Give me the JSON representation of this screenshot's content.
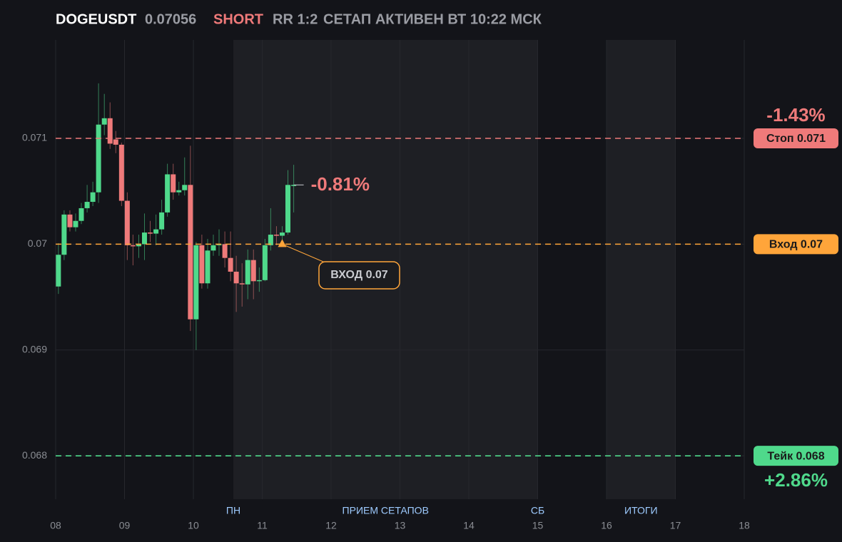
{
  "chart_data": {
    "type": "candlestick",
    "header": {
      "symbol": "DOGEUSDT",
      "price": 0.07056,
      "side": "SHORT",
      "rr": "RR 1:2",
      "status": "СЕТАП АКТИВЕН ВТ 10:22 МСК"
    },
    "xlim": [
      8,
      18
    ],
    "ylim": [
      0.06759,
      0.07193
    ],
    "xticks": [
      {
        "value": 8,
        "label": "08"
      },
      {
        "value": 9,
        "label": "09"
      },
      10,
      11,
      12,
      13,
      14,
      15,
      16,
      17,
      18
    ],
    "yticks": [
      0.068,
      0.069,
      0.07,
      0.071
    ],
    "grid": true,
    "up_color": "#4fd98b",
    "down_color": "#ef7a7a",
    "x": [
      8.04,
      8.123,
      8.207,
      8.29,
      8.373,
      8.457,
      8.54,
      8.623,
      8.707,
      8.79,
      8.873,
      8.957,
      9.04,
      9.123,
      9.207,
      9.29,
      9.373,
      9.457,
      9.54,
      9.623,
      9.707,
      9.79,
      9.873,
      9.957,
      10.04,
      10.123,
      10.207,
      10.29,
      10.373,
      10.457,
      10.54,
      10.623,
      10.707,
      10.79,
      10.873,
      10.957,
      11.04,
      11.123,
      11.207,
      11.29,
      11.373,
      11.457
    ],
    "open": [
      0.0696,
      0.0699,
      0.07028,
      0.07016,
      0.07022,
      0.07034,
      0.0704,
      0.07049,
      0.07113,
      0.07119,
      0.07099,
      0.07094,
      0.07041,
      0.06999,
      0.06998,
      0.07,
      0.07011,
      0.0701,
      0.07014,
      0.0703,
      0.07066,
      0.07049,
      0.07051,
      0.07056,
      0.06929,
      0.06999,
      0.06963,
      0.06994,
      0.06999,
      0.07,
      0.06987,
      0.06974,
      0.06963,
      0.06962,
      0.06985,
      0.06965,
      0.06966,
      0.06999,
      0.07009,
      0.07008,
      0.07011,
      0.07056
    ],
    "high": [
      0.07001,
      0.07032,
      0.07032,
      0.07029,
      0.07039,
      0.07056,
      0.07059,
      0.07152,
      0.07142,
      0.07134,
      0.07107,
      0.07096,
      0.07049,
      0.07009,
      0.07009,
      0.07029,
      0.07022,
      0.07028,
      0.07042,
      0.07076,
      0.07076,
      0.07059,
      0.07082,
      0.07093,
      0.07002,
      0.07009,
      0.07005,
      0.07009,
      0.07014,
      0.07012,
      0.07012,
      0.06989,
      0.06982,
      0.06995,
      0.06995,
      0.06978,
      0.07005,
      0.07034,
      0.07017,
      0.07017,
      0.0707,
      0.07075
    ],
    "low": [
      0.06953,
      0.06985,
      0.07012,
      0.07012,
      0.07019,
      0.0703,
      0.07036,
      0.07039,
      0.07103,
      0.0709,
      0.07086,
      0.07036,
      0.06985,
      0.0698,
      0.06987,
      0.06985,
      0.07002,
      0.06999,
      0.07009,
      0.07026,
      0.07042,
      0.07046,
      0.07046,
      0.06918,
      0.069,
      0.06958,
      0.06958,
      0.06989,
      0.06989,
      0.06978,
      0.06965,
      0.06936,
      0.06941,
      0.06948,
      0.06948,
      0.06955,
      0.06965,
      0.06994,
      0.06999,
      0.06999,
      0.07009,
      0.0703
    ],
    "close": [
      0.0699,
      0.07028,
      0.07016,
      0.07022,
      0.07034,
      0.0704,
      0.07049,
      0.07113,
      0.07119,
      0.07095,
      0.07094,
      0.07041,
      0.06999,
      0.06998,
      0.07,
      0.07011,
      0.0701,
      0.07014,
      0.0703,
      0.07066,
      0.07049,
      0.07051,
      0.07056,
      0.06929,
      0.06999,
      0.06963,
      0.06994,
      0.06999,
      0.07,
      0.06987,
      0.06974,
      0.06963,
      0.06962,
      0.06985,
      0.06965,
      0.06966,
      0.06999,
      0.07009,
      0.07008,
      0.07011,
      0.07056,
      0.07056
    ],
    "price_annotation": "-0.81%",
    "levels": [
      {
        "name": "Стоп 0.071",
        "value": 0.071,
        "color": "#ef7a7a",
        "pct": "-1.43%",
        "pct_side": "above"
      },
      {
        "name": "Вход 0.07",
        "value": 0.07,
        "color": "#ffa53a"
      },
      {
        "name": "Тейк 0.068",
        "value": 0.068,
        "color": "#4fd98b",
        "pct": "+2.86%",
        "pct_side": "below"
      }
    ],
    "entry": {
      "x": 11.29,
      "y": 0.07,
      "label": "ВХОД 0.07",
      "color": "#ffa53a"
    },
    "zones": [
      {
        "start": 10.58,
        "end": 15,
        "start_label": "ПН",
        "label": "ПРИЕМ СЕТАПОВ",
        "end_label": "СБ"
      },
      {
        "start": 16,
        "end": 17,
        "label": "ИТОГИ"
      }
    ]
  }
}
